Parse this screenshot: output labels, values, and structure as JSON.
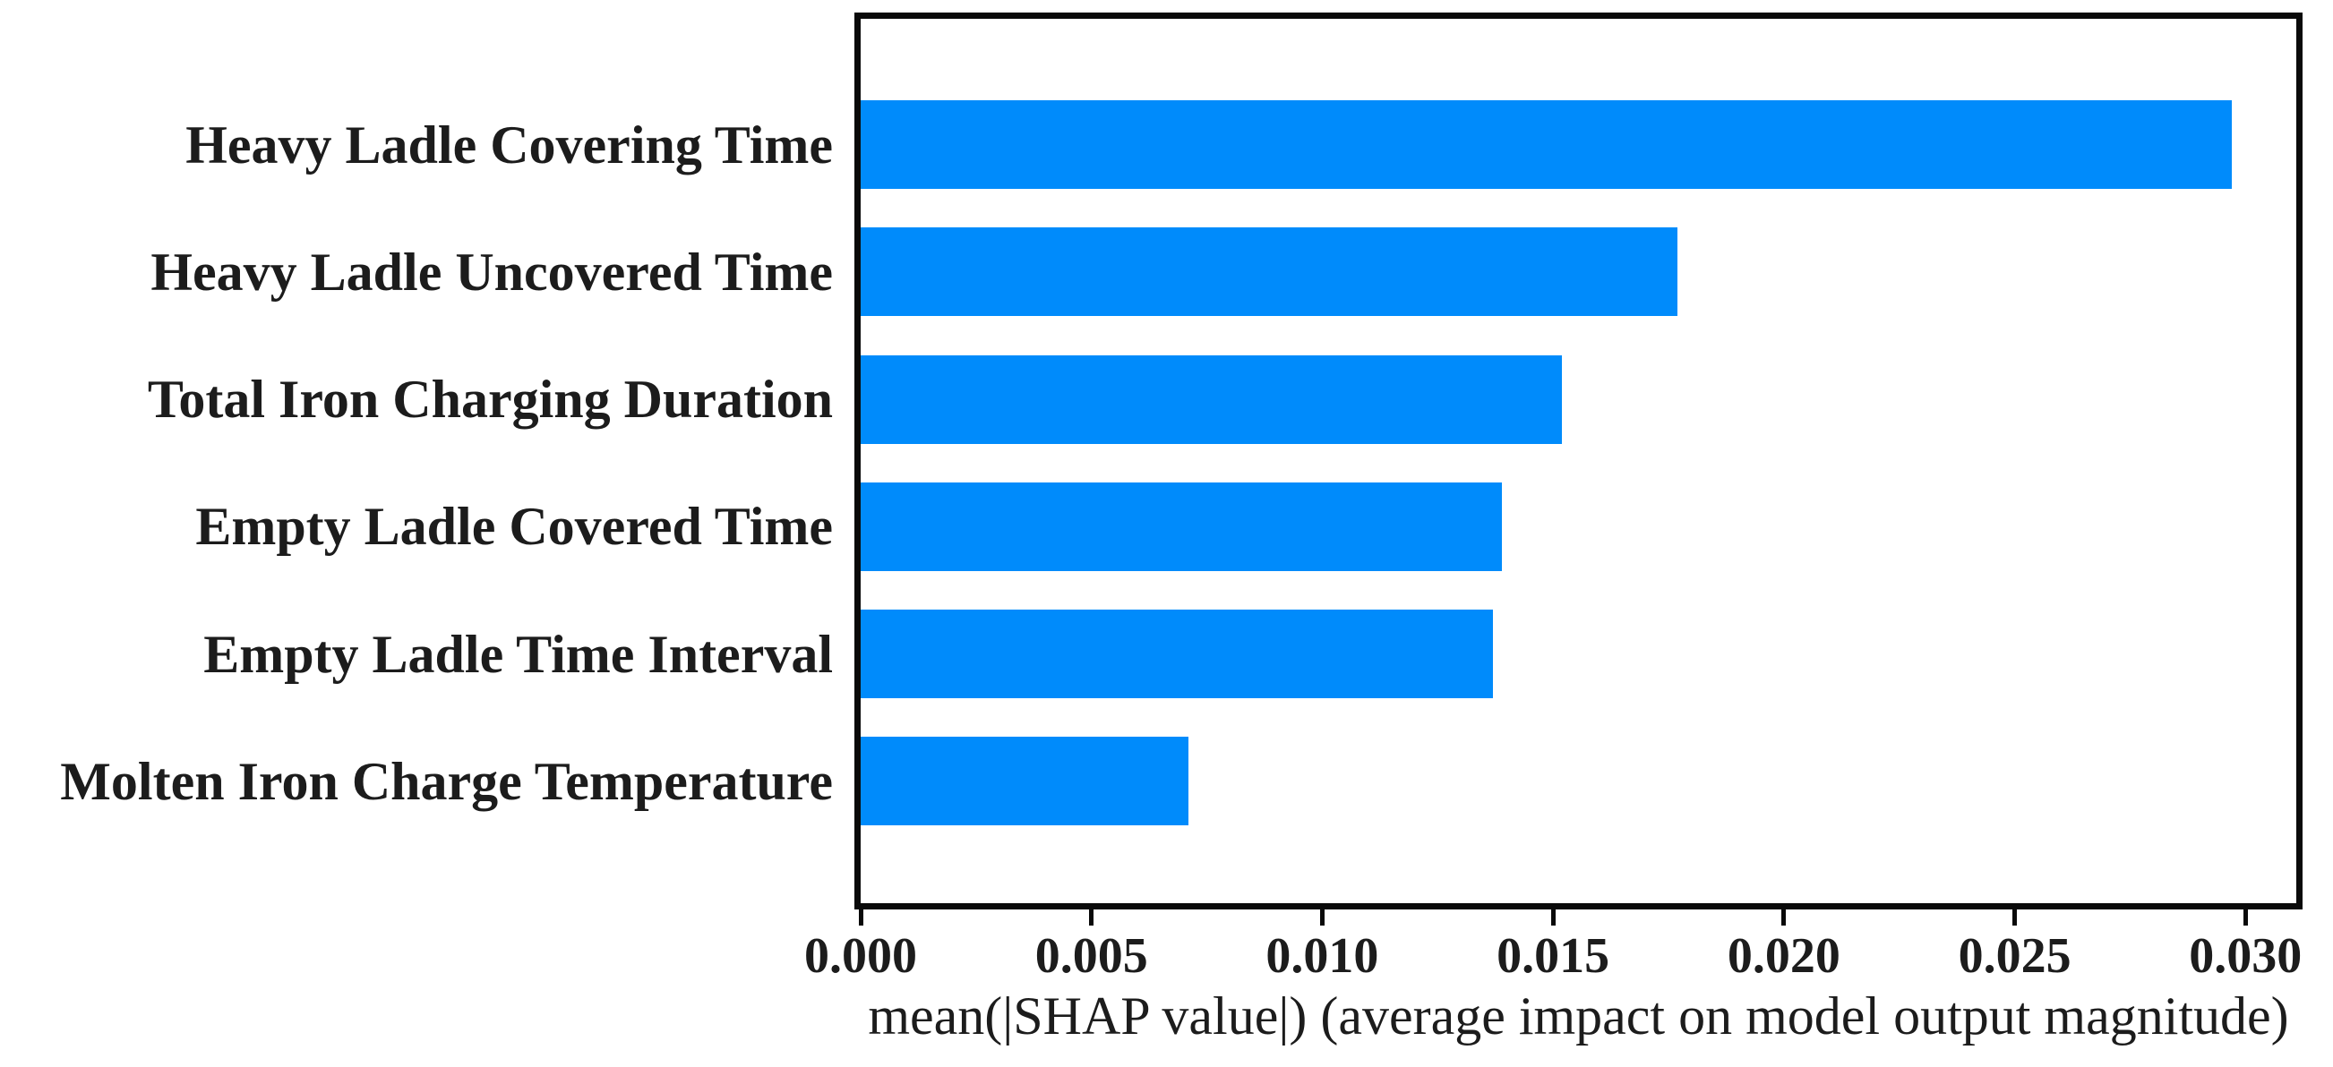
{
  "chart_data": {
    "type": "bar",
    "orientation": "horizontal",
    "title": "",
    "categories": [
      "Heavy Ladle Covering Time",
      "Heavy Ladle Uncovered Time",
      "Total Iron Charging Duration",
      "Empty Ladle Covered Time",
      "Empty Ladle Time Interval",
      "Molten Iron Charge Temperature"
    ],
    "values": [
      0.0297,
      0.0177,
      0.0152,
      0.0139,
      0.0137,
      0.0071
    ],
    "xlabel": "mean(|SHAP value|) (average impact on model output magnitude)",
    "ylabel": "",
    "xlim": [
      0,
      0.0311
    ],
    "x_ticks": [
      0.0,
      0.005,
      0.01,
      0.015,
      0.02,
      0.025,
      0.03
    ],
    "x_tick_labels": [
      "0.000",
      "0.005",
      "0.010",
      "0.015",
      "0.020",
      "0.025",
      "0.030"
    ],
    "bar_color": "#008bfb",
    "axis_color": "#0a0a0a",
    "text_color": "#1c1c1c",
    "grid": false,
    "legend_position": "none"
  }
}
